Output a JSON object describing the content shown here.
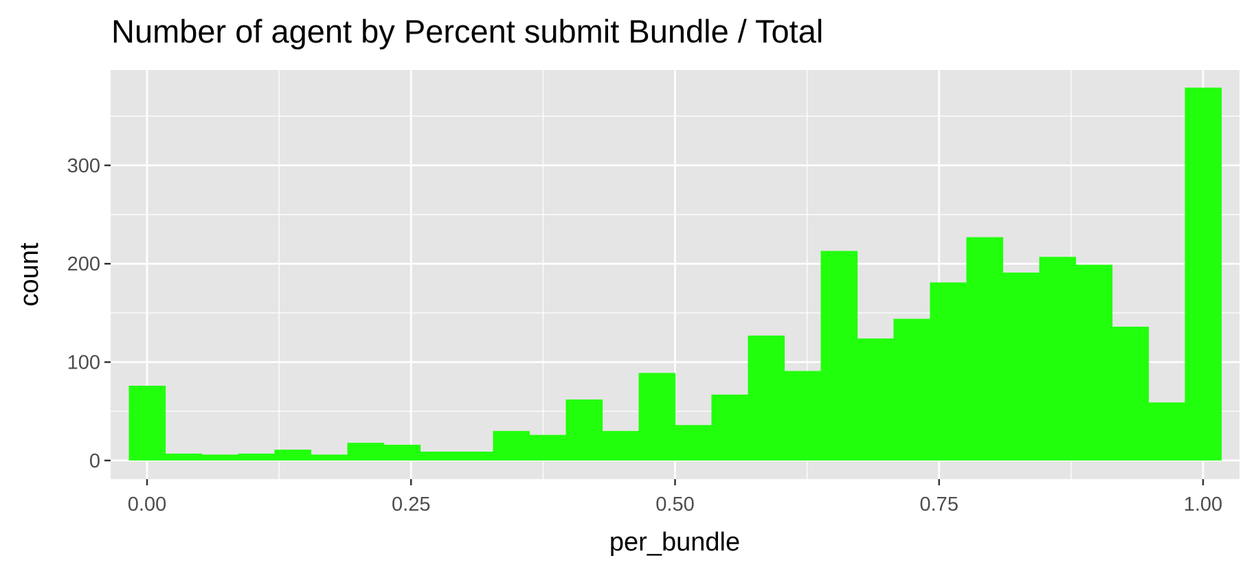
{
  "chart_data": {
    "type": "bar",
    "title": "Number of agent by Percent submit Bundle / Total",
    "xlabel": "per_bundle",
    "ylabel": "count",
    "xlim": [
      -0.0345,
      1.0345
    ],
    "ylim": [
      -18.9,
      396.9
    ],
    "x_ticks": [
      {
        "value": 0,
        "label": "0.00"
      },
      {
        "value": 0.25,
        "label": "0.25"
      },
      {
        "value": 0.5,
        "label": "0.50"
      },
      {
        "value": 0.75,
        "label": "0.75"
      },
      {
        "value": 1,
        "label": "1.00"
      }
    ],
    "y_ticks": [
      {
        "value": 0,
        "label": "0"
      },
      {
        "value": 100,
        "label": "100"
      },
      {
        "value": 200,
        "label": "200"
      },
      {
        "value": 300,
        "label": "300"
      }
    ],
    "x_minor_breaks": [
      0.125,
      0.375,
      0.625,
      0.875
    ],
    "y_minor_breaks": [
      50,
      150,
      250,
      350
    ],
    "grid": true,
    "bin_width": 0.0345,
    "bin_centers": [
      0,
      0.0345,
      0.069,
      0.1034,
      0.1379,
      0.1724,
      0.2069,
      0.2414,
      0.2759,
      0.3103,
      0.3448,
      0.3793,
      0.4138,
      0.4483,
      0.4828,
      0.5172,
      0.5517,
      0.5862,
      0.6207,
      0.6552,
      0.6897,
      0.7241,
      0.7586,
      0.7931,
      0.8276,
      0.8621,
      0.8966,
      0.931,
      0.9655,
      1.0
    ],
    "values": [
      76,
      7,
      6,
      7,
      11,
      6,
      18,
      16,
      9,
      9,
      30,
      26,
      62,
      30,
      89,
      36,
      67,
      127,
      91,
      213,
      124,
      144,
      181,
      227,
      191,
      207,
      199,
      136,
      59,
      379
    ],
    "colors": {
      "bar": "#22ff0c",
      "panel": "#e5e5e5",
      "grid_major": "#ffffff",
      "tick_mark": "#333333"
    }
  }
}
